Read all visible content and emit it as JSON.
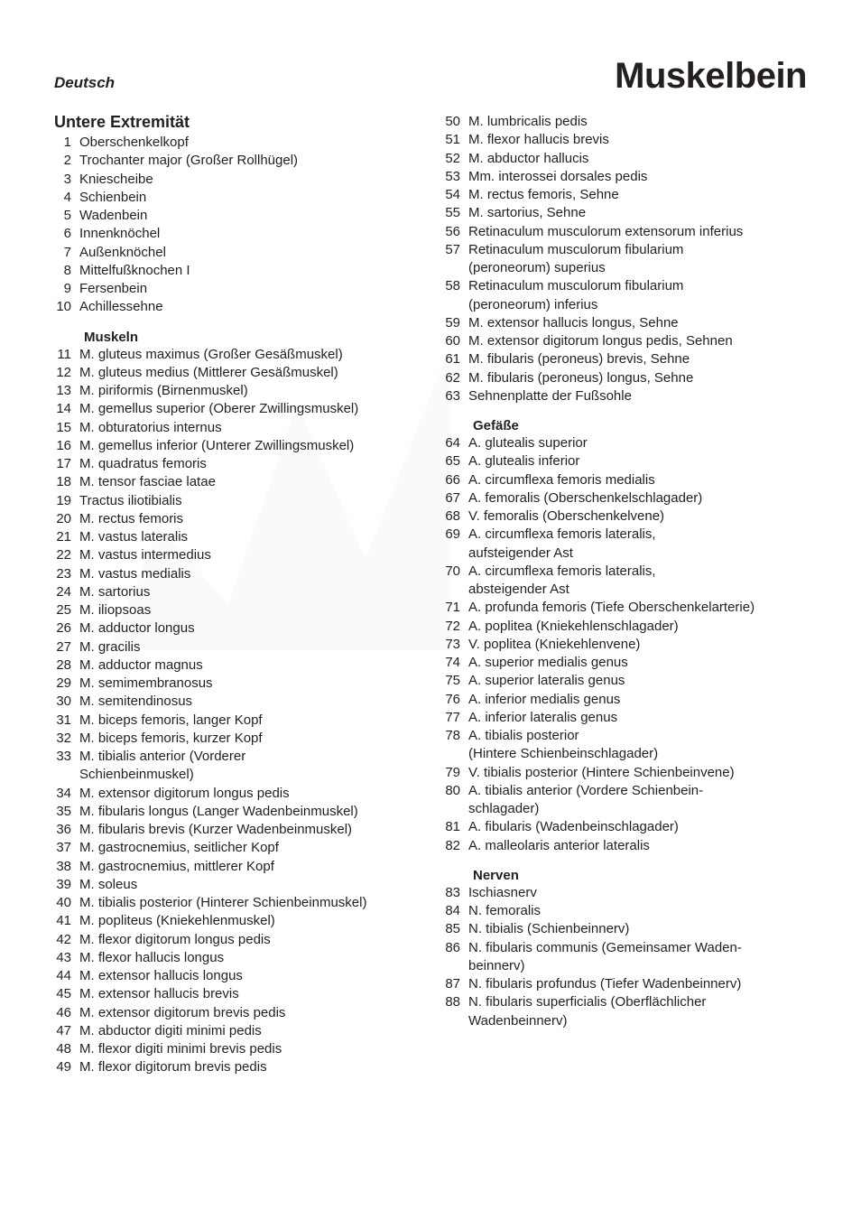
{
  "header": {
    "language": "Deutsch",
    "title": "Muskelbein"
  },
  "left": {
    "section_title": "Untere Extremität",
    "items_a": [
      {
        "n": "1",
        "t": "Oberschenkelkopf"
      },
      {
        "n": "2",
        "t": "Trochanter major (Großer Rollhügel)"
      },
      {
        "n": "3",
        "t": "Kniescheibe"
      },
      {
        "n": "4",
        "t": "Schienbein"
      },
      {
        "n": "5",
        "t": "Wadenbein"
      },
      {
        "n": "6",
        "t": "Innenknöchel"
      },
      {
        "n": "7",
        "t": "Außenknöchel"
      },
      {
        "n": "8",
        "t": "Mittelfußknochen I"
      },
      {
        "n": "9",
        "t": "Fersenbein"
      },
      {
        "n": "10",
        "t": "Achillessehne"
      }
    ],
    "sub_muscles": "Muskeln",
    "items_b": [
      {
        "n": "11",
        "t": "M. gluteus maximus (Großer Gesäßmuskel)"
      },
      {
        "n": "12",
        "t": "M. gluteus medius (Mittlerer Gesäßmuskel)"
      },
      {
        "n": "13",
        "t": "M. piriformis (Birnenmuskel)"
      },
      {
        "n": "14",
        "t": "M. gemellus superior (Oberer Zwillingsmuskel)"
      },
      {
        "n": "15",
        "t": "M. obturatorius internus"
      },
      {
        "n": "16",
        "t": "M. gemellus inferior (Unterer Zwillingsmuskel)"
      },
      {
        "n": "17",
        "t": "M. quadratus femoris"
      },
      {
        "n": "18",
        "t": "M. tensor fasciae latae"
      },
      {
        "n": "19",
        "t": "Tractus iliotibialis"
      },
      {
        "n": "20",
        "t": "M. rectus femoris"
      },
      {
        "n": "21",
        "t": "M. vastus lateralis"
      },
      {
        "n": "22",
        "t": "M. vastus intermedius"
      },
      {
        "n": "23",
        "t": "M. vastus medialis"
      },
      {
        "n": "24",
        "t": "M. sartorius"
      },
      {
        "n": "25",
        "t": "M. iliopsoas"
      },
      {
        "n": "26",
        "t": "M. adductor longus"
      },
      {
        "n": "27",
        "t": "M. gracilis"
      },
      {
        "n": "28",
        "t": "M. adductor magnus"
      },
      {
        "n": "29",
        "t": "M. semimembranosus"
      },
      {
        "n": "30",
        "t": "M. semitendinosus"
      },
      {
        "n": "31",
        "t": "M. biceps femoris, langer Kopf"
      },
      {
        "n": "32",
        "t": "M. biceps femoris, kurzer Kopf"
      },
      {
        "n": "33",
        "t": "M. tibialis anterior (Vorderer Schienbeinmuskel)",
        "wrap": true,
        "t2": "Schienbeinmuskel)",
        "t1": "M. tibialis anterior (Vorderer"
      },
      {
        "n": "34",
        "t": "M. extensor digitorum longus pedis"
      },
      {
        "n": "35",
        "t": "M. fibularis longus (Langer Wadenbeinmuskel)"
      },
      {
        "n": "36",
        "t": "M. fibularis brevis (Kurzer Wadenbeinmuskel)"
      },
      {
        "n": "37",
        "t": "M. gastrocnemius, seitlicher Kopf"
      },
      {
        "n": "38",
        "t": "M. gastrocnemius, mittlerer Kopf"
      },
      {
        "n": "39",
        "t": "M. soleus"
      },
      {
        "n": "40",
        "t": "M. tibialis posterior (Hinterer Schienbeinmuskel)"
      },
      {
        "n": "41",
        "t": "M. popliteus (Kniekehlenmuskel)"
      },
      {
        "n": "42",
        "t": "M. flexor digitorum longus pedis"
      },
      {
        "n": "43",
        "t": "M. flexor hallucis longus"
      },
      {
        "n": "44",
        "t": "M. extensor hallucis longus"
      },
      {
        "n": "45",
        "t": "M. extensor hallucis brevis"
      },
      {
        "n": "46",
        "t": "M. extensor digitorum brevis pedis"
      },
      {
        "n": "47",
        "t": "M. abductor digiti minimi pedis"
      },
      {
        "n": "48",
        "t": "M. flexor digiti minimi brevis pedis"
      },
      {
        "n": "49",
        "t": "M. flexor digitorum brevis pedis"
      }
    ]
  },
  "right": {
    "items_c": [
      {
        "n": "50",
        "t": "M. lumbricalis pedis"
      },
      {
        "n": "51",
        "t": "M. flexor hallucis brevis"
      },
      {
        "n": "52",
        "t": "M. abductor hallucis"
      },
      {
        "n": "53",
        "t": "Mm. interossei dorsales pedis"
      },
      {
        "n": "54",
        "t": "M. rectus femoris, Sehne"
      },
      {
        "n": "55",
        "t": "M. sartorius, Sehne"
      },
      {
        "n": "56",
        "t": "Retinaculum musculorum extensorum inferius"
      },
      {
        "n": "57",
        "t1": "Retinaculum musculorum fibularium",
        "t2": "(peroneorum) superius",
        "wrap": true
      },
      {
        "n": "58",
        "t1": "Retinaculum musculorum fibularium",
        "t2": "(peroneorum) inferius",
        "wrap": true
      },
      {
        "n": "59",
        "t": "M. extensor hallucis longus, Sehne"
      },
      {
        "n": "60",
        "t": "M. extensor digitorum longus pedis, Sehnen"
      },
      {
        "n": "61",
        "t": "M. fibularis (peroneus) brevis, Sehne"
      },
      {
        "n": "62",
        "t": "M. fibularis (peroneus) longus, Sehne"
      },
      {
        "n": "63",
        "t": "Sehnenplatte der Fußsohle"
      }
    ],
    "sub_vessels": "Gefäße",
    "items_d": [
      {
        "n": "64",
        "t": "A. glutealis superior"
      },
      {
        "n": "65",
        "t": "A. glutealis inferior"
      },
      {
        "n": "66",
        "t": "A. circumflexa femoris medialis"
      },
      {
        "n": "67",
        "t": "A. femoralis (Oberschenkelschlagader)"
      },
      {
        "n": "68",
        "t": "V. femoralis (Oberschenkelvene)"
      },
      {
        "n": "69",
        "t1": "A. circumflexa femoris lateralis,",
        "t2": "aufsteigender Ast",
        "wrap": true
      },
      {
        "n": "70",
        "t1": "A. circumflexa femoris lateralis,",
        "t2": "absteigender Ast",
        "wrap": true
      },
      {
        "n": "71",
        "t": "A. profunda femoris (Tiefe Oberschenkelarterie)"
      },
      {
        "n": "72",
        "t": "A. poplitea (Kniekehlenschlagader)"
      },
      {
        "n": "73",
        "t": "V. poplitea (Kniekehlenvene)"
      },
      {
        "n": "74",
        "t": "A. superior medialis genus"
      },
      {
        "n": "75",
        "t": "A. superior lateralis genus"
      },
      {
        "n": "76",
        "t": "A. inferior medialis genus"
      },
      {
        "n": "77",
        "t": "A. inferior lateralis genus"
      },
      {
        "n": "78",
        "t1": "A. tibialis posterior",
        "t2": "(Hintere Schienbeinschlagader)",
        "wrap": true
      },
      {
        "n": "79",
        "t": "V. tibialis posterior (Hintere Schienbeinvene)"
      },
      {
        "n": "80",
        "t1": "A. tibialis anterior (Vordere Schienbein-",
        "t2": "schlagader)",
        "wrap": true
      },
      {
        "n": "81",
        "t": "A. fibularis (Wadenbeinschlagader)"
      },
      {
        "n": "82",
        "t": "A. malleolaris anterior lateralis"
      }
    ],
    "sub_nerves": "Nerven",
    "items_e": [
      {
        "n": "83",
        "t": "Ischiasnerv"
      },
      {
        "n": "84",
        "t": "N. femoralis"
      },
      {
        "n": "85",
        "t": "N. tibialis (Schienbeinnerv)"
      },
      {
        "n": "86",
        "t1": "N. fibularis communis (Gemeinsamer Waden-",
        "t2": "beinnerv)",
        "wrap": true
      },
      {
        "n": "87",
        "t": "N. fibularis profundus (Tiefer Wadenbeinnerv)"
      },
      {
        "n": "88",
        "t1": "N. fibularis superficialis (Oberflächlicher",
        "t2": "Wadenbeinnerv)",
        "wrap": true
      }
    ]
  },
  "style": {
    "body_bg": "#ffffff",
    "text_color": "#231f20",
    "title_fontsize": 40,
    "section_fontsize": 18,
    "body_fontsize": 15,
    "line_height": 1.35,
    "num_col_width": 28
  }
}
